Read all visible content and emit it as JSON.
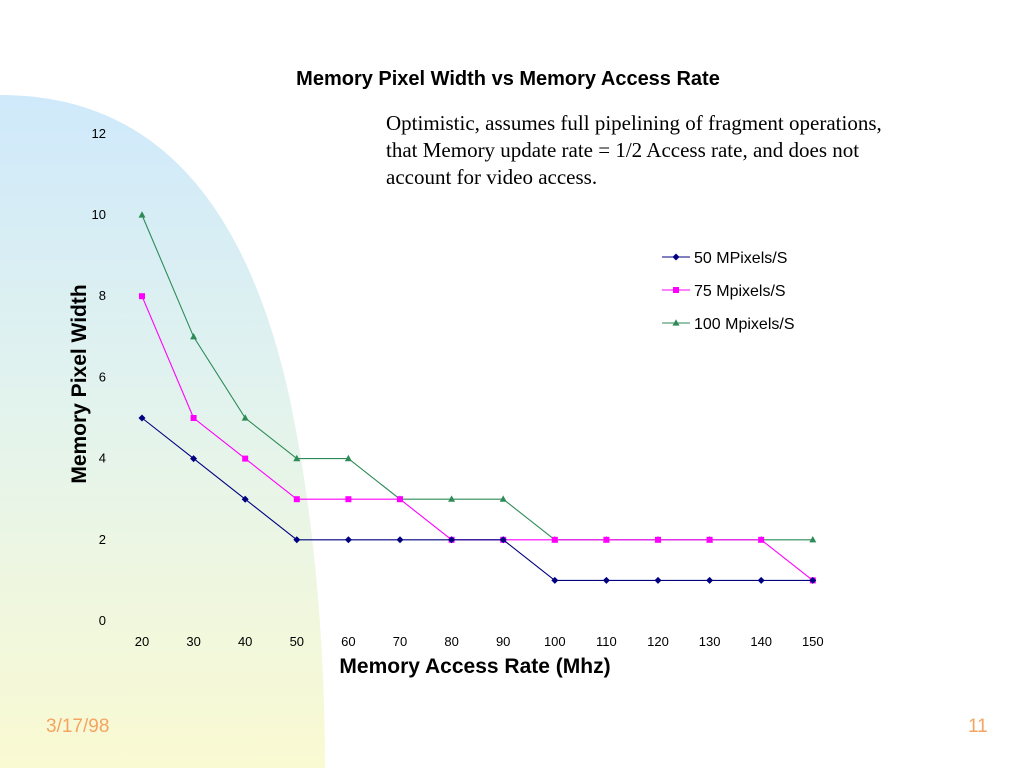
{
  "note": {
    "lines": [
      "Optimistic, assumes full pipelining of fragment operations,",
      "that Memory update rate = 1/2 Access rate, and does not",
      "account for video access."
    ]
  },
  "footer": {
    "date": "3/17/98",
    "page": "11"
  },
  "colors": {
    "footer": "#f4a460",
    "series_50": "#000080",
    "series_75": "#ff00ff",
    "series_100": "#2e8b57"
  },
  "chart_data": {
    "type": "line",
    "title": "Memory Pixel Width vs Memory Access Rate",
    "xlabel": "Memory Access Rate (Mhz)",
    "ylabel": "Memory Pixel Width",
    "x": [
      20,
      30,
      40,
      50,
      60,
      70,
      80,
      90,
      100,
      110,
      120,
      130,
      140,
      150
    ],
    "ylim": [
      0,
      12
    ],
    "yticks": [
      0,
      2,
      4,
      6,
      8,
      10,
      12
    ],
    "grid": false,
    "legend": "right",
    "series": [
      {
        "name": "50 MPixels/S",
        "marker": "diamond",
        "color": "#000080",
        "values": [
          5,
          4,
          3,
          2,
          2,
          2,
          2,
          2,
          1,
          1,
          1,
          1,
          1,
          1
        ]
      },
      {
        "name": "75 Mpixels/S",
        "marker": "square",
        "color": "#ff00ff",
        "values": [
          8,
          5,
          4,
          3,
          3,
          3,
          2,
          2,
          2,
          2,
          2,
          2,
          2,
          1
        ]
      },
      {
        "name": "100 Mpixels/S",
        "marker": "triangle",
        "color": "#2e8b57",
        "values": [
          10,
          7,
          5,
          4,
          4,
          3,
          3,
          3,
          2,
          2,
          2,
          2,
          2,
          2
        ]
      }
    ]
  }
}
